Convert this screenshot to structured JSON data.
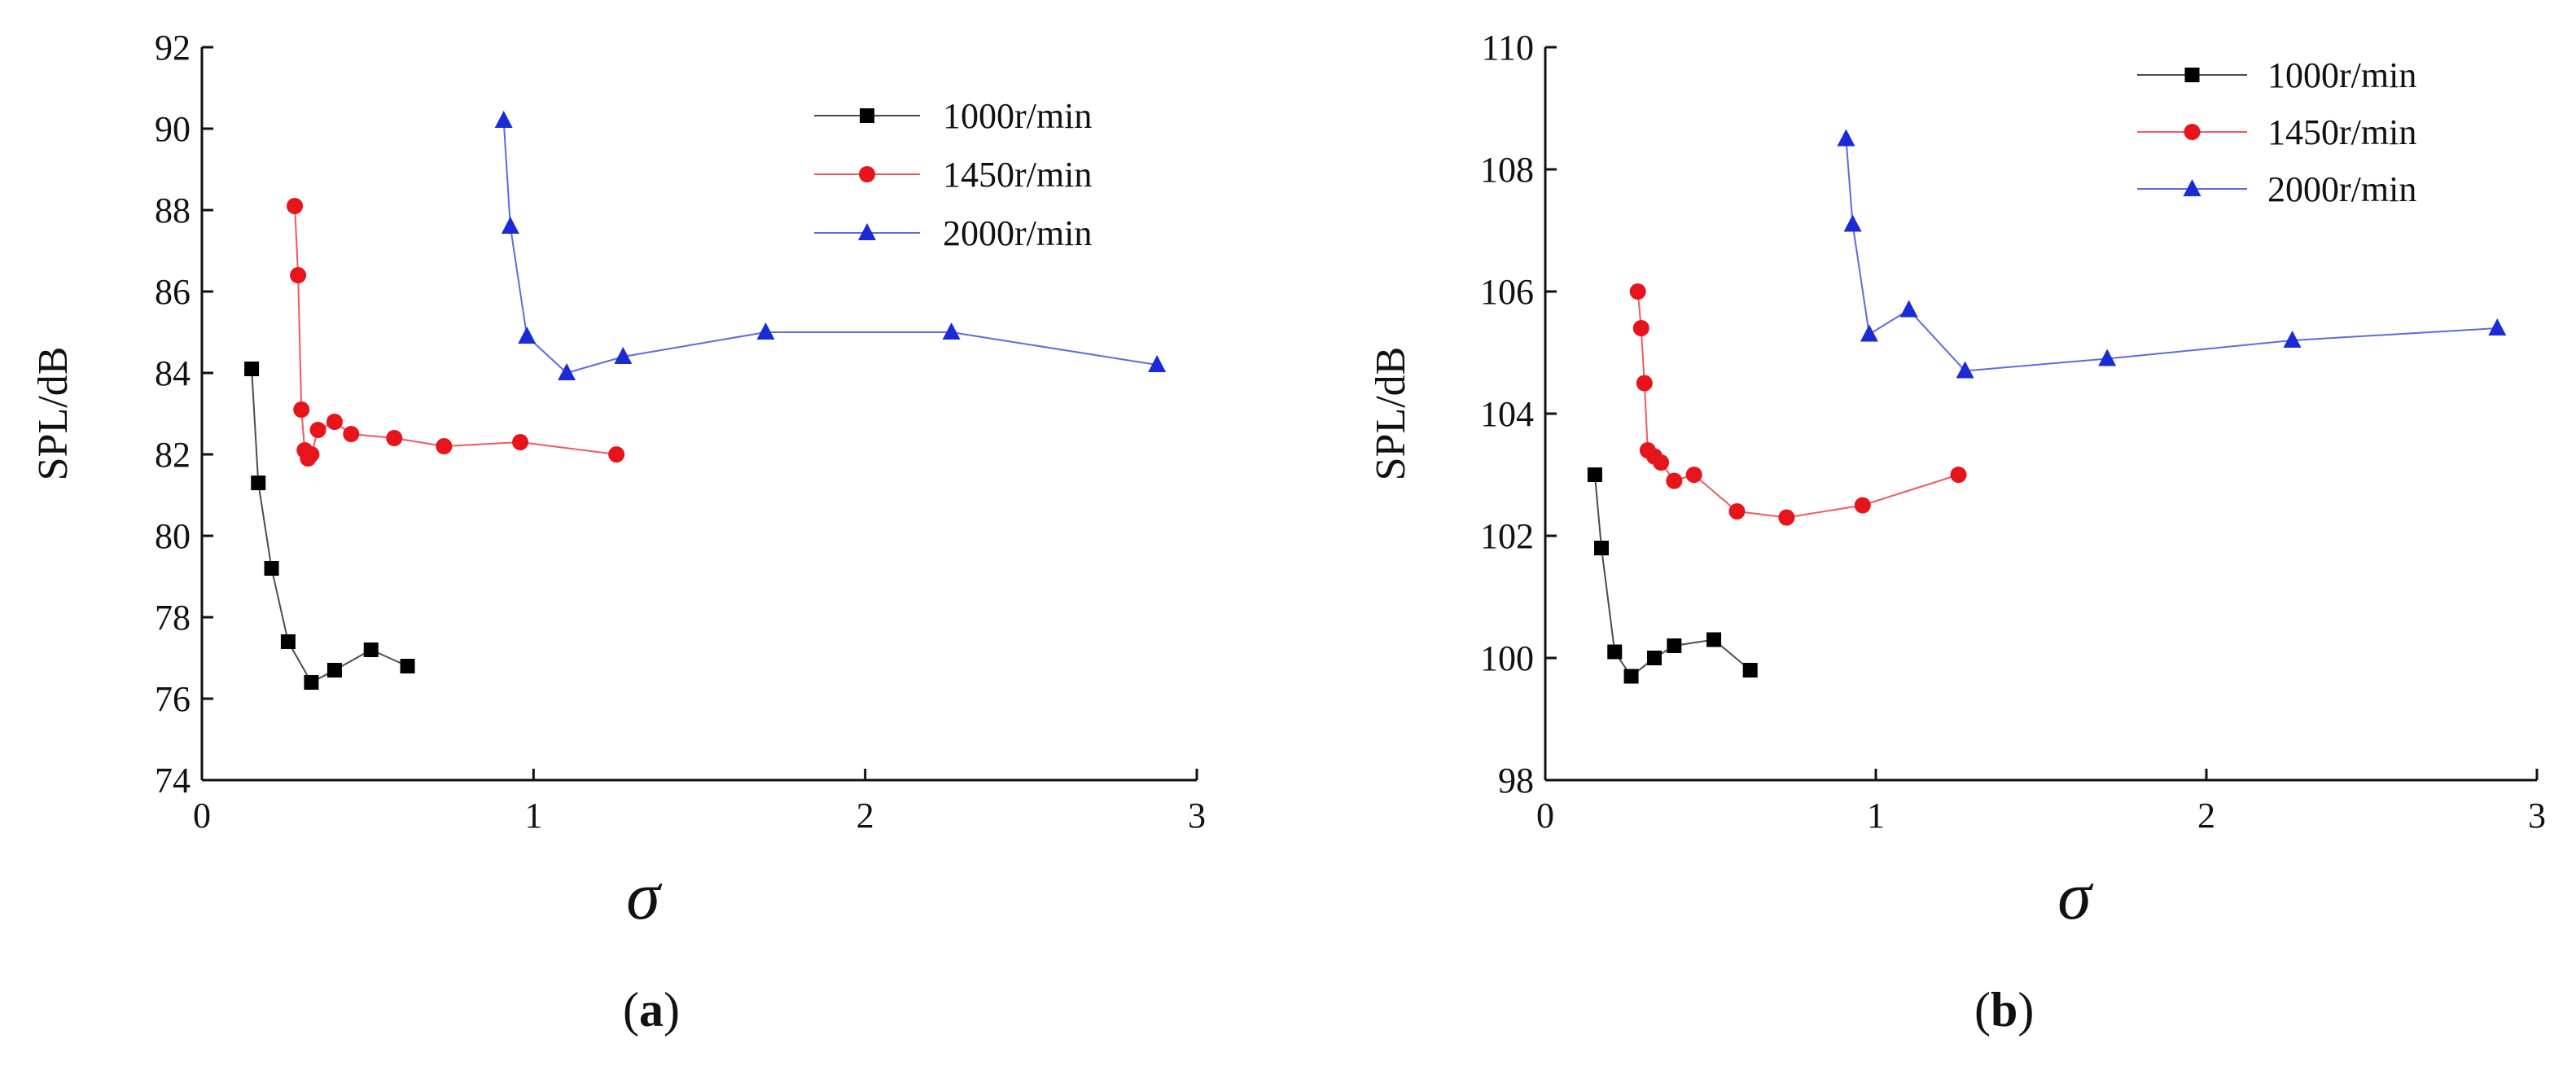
{
  "chart_data": [
    {
      "type": "line",
      "panel_label": "a",
      "title": "",
      "xlabel": "σ",
      "ylabel": "SPL/dB",
      "xlim": [
        0,
        3
      ],
      "ylim": [
        74,
        92
      ],
      "xticks": [
        0,
        1,
        2,
        3
      ],
      "yticks": [
        74,
        76,
        78,
        80,
        82,
        84,
        86,
        88,
        90,
        92
      ],
      "grid": false,
      "legend_position": "top-right",
      "series": [
        {
          "name": "1000r/min",
          "color": "#000000",
          "marker": "square",
          "x": [
            0.15,
            0.17,
            0.21,
            0.26,
            0.33,
            0.4,
            0.51,
            0.62
          ],
          "y": [
            84.1,
            81.3,
            79.2,
            77.4,
            76.4,
            76.7,
            77.2,
            76.8
          ]
        },
        {
          "name": "1450r/min",
          "color": "#e8141c",
          "marker": "circle",
          "x": [
            0.28,
            0.29,
            0.3,
            0.31,
            0.32,
            0.33,
            0.35,
            0.4,
            0.45,
            0.58,
            0.73,
            0.96,
            1.25
          ],
          "y": [
            88.1,
            86.4,
            83.1,
            82.1,
            81.9,
            82.0,
            82.6,
            82.8,
            82.5,
            82.4,
            82.2,
            82.3,
            82.0
          ]
        },
        {
          "name": "2000r/min",
          "color": "#1a2bd6",
          "marker": "triangle",
          "x": [
            0.91,
            0.93,
            0.98,
            1.1,
            1.27,
            1.7,
            2.26,
            2.88
          ],
          "y": [
            90.2,
            87.6,
            84.9,
            84.0,
            84.4,
            85.0,
            85.0,
            84.2
          ]
        }
      ]
    },
    {
      "type": "line",
      "panel_label": "b",
      "title": "",
      "xlabel": "σ",
      "ylabel": "SPL/dB",
      "xlim": [
        0,
        3
      ],
      "ylim": [
        98,
        110
      ],
      "xticks": [
        0,
        1,
        2,
        3
      ],
      "yticks": [
        98,
        100,
        102,
        104,
        106,
        108,
        110
      ],
      "grid": false,
      "legend_position": "top-right",
      "series": [
        {
          "name": "1000r/min",
          "color": "#000000",
          "marker": "square",
          "x": [
            0.15,
            0.17,
            0.21,
            0.26,
            0.33,
            0.39,
            0.51,
            0.62
          ],
          "y": [
            103.0,
            101.8,
            100.1,
            99.7,
            100.0,
            100.2,
            100.3,
            99.8
          ]
        },
        {
          "name": "1450r/min",
          "color": "#e8141c",
          "marker": "circle",
          "x": [
            0.28,
            0.29,
            0.3,
            0.31,
            0.33,
            0.35,
            0.39,
            0.45,
            0.58,
            0.73,
            0.96,
            1.25
          ],
          "y": [
            106.0,
            105.4,
            104.5,
            103.4,
            103.3,
            103.2,
            102.9,
            103.0,
            102.4,
            102.3,
            102.5,
            103.0
          ]
        },
        {
          "name": "2000r/min",
          "color": "#1a2bd6",
          "marker": "triangle",
          "x": [
            0.91,
            0.93,
            0.98,
            1.1,
            1.27,
            1.7,
            2.26,
            2.88
          ],
          "y": [
            108.5,
            107.1,
            105.3,
            105.7,
            104.7,
            104.9,
            105.2,
            105.4
          ]
        }
      ]
    }
  ]
}
